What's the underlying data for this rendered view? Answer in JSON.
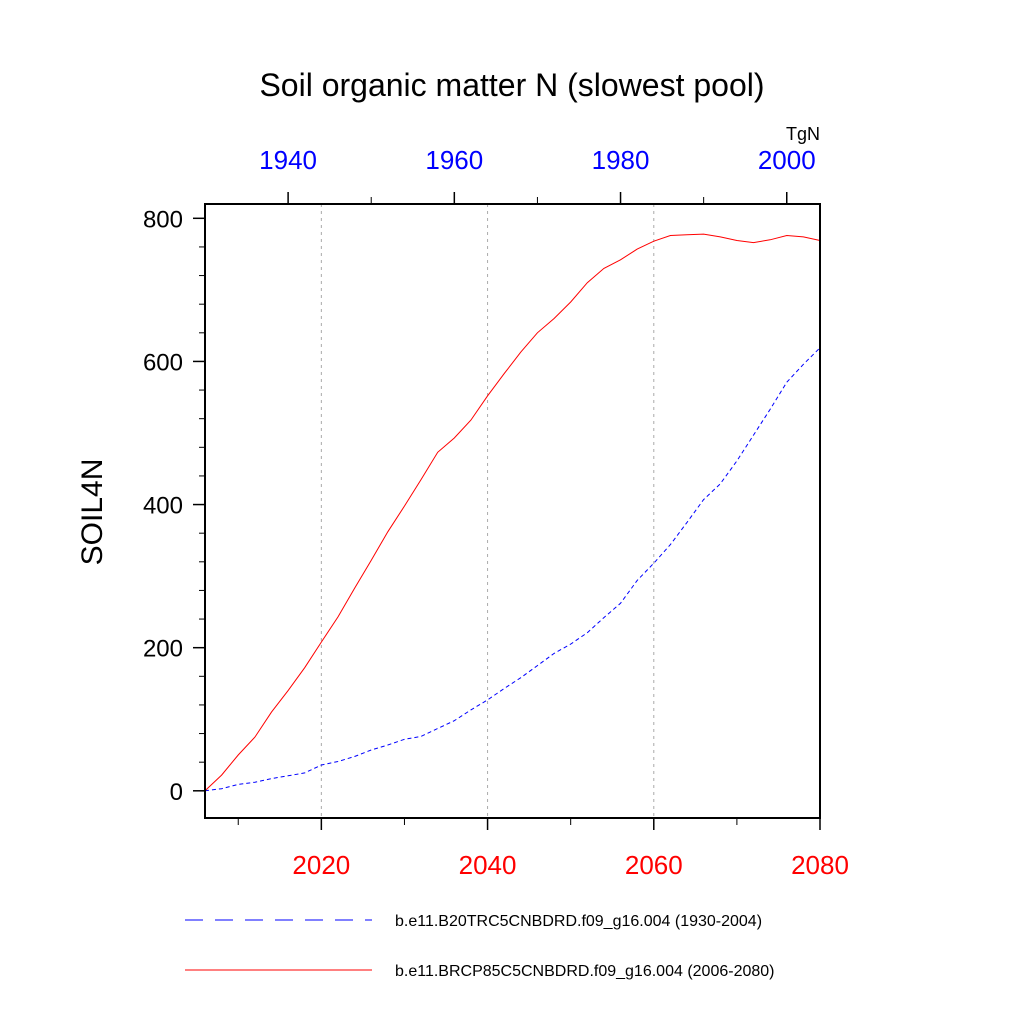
{
  "chart_data": {
    "type": "line",
    "title": "Soil organic matter N (slowest pool)",
    "ylabel": "SOIL4N",
    "units": "TgN",
    "ylim": [
      -38,
      820
    ],
    "yticks": [
      0,
      200,
      400,
      600,
      800
    ],
    "x_bottom": {
      "range": [
        2006,
        2080
      ],
      "ticks": [
        2020,
        2040,
        2060,
        2080
      ],
      "color": "#ff0000"
    },
    "x_top": {
      "range": [
        1930,
        2004
      ],
      "ticks": [
        1940,
        1960,
        1980,
        2000
      ],
      "color": "#0000ff"
    },
    "gridlines_x": [
      2020,
      2040,
      2060
    ],
    "series": [
      {
        "name": "b.e11.B20TRC5CNBDRD.f09_g16.004 (1930-2004)",
        "axis": "top",
        "color": "#0000ff",
        "dash": "dashed",
        "x": [
          1930,
          1932,
          1934,
          1936,
          1938,
          1940,
          1942,
          1944,
          1946,
          1948,
          1950,
          1952,
          1954,
          1956,
          1958,
          1960,
          1962,
          1964,
          1966,
          1968,
          1970,
          1972,
          1974,
          1976,
          1978,
          1980,
          1982,
          1984,
          1986,
          1988,
          1990,
          1992,
          1994,
          1996,
          1998,
          2000,
          2002,
          2004
        ],
        "values": [
          0,
          3,
          9,
          12,
          17,
          21,
          25,
          36,
          41,
          48,
          57,
          64,
          72,
          76,
          87,
          98,
          113,
          127,
          143,
          158,
          175,
          192,
          205,
          221,
          242,
          262,
          294,
          318,
          344,
          375,
          407,
          429,
          461,
          497,
          533,
          571,
          596,
          619
        ]
      },
      {
        "name": "b.e11.BRCP85C5CNBDRD.f09_g16.004 (2006-2080)",
        "axis": "bottom",
        "color": "#ff0000",
        "dash": "solid",
        "x": [
          2006,
          2008,
          2010,
          2012,
          2014,
          2016,
          2018,
          2020,
          2022,
          2024,
          2026,
          2028,
          2030,
          2032,
          2034,
          2036,
          2038,
          2040,
          2042,
          2044,
          2046,
          2048,
          2050,
          2052,
          2054,
          2056,
          2058,
          2060,
          2062,
          2064,
          2066,
          2068,
          2070,
          2072,
          2074,
          2076,
          2078,
          2080
        ],
        "values": [
          0,
          22,
          50,
          75,
          110,
          140,
          172,
          208,
          243,
          283,
          322,
          362,
          398,
          435,
          473,
          493,
          518,
          552,
          583,
          613,
          640,
          660,
          683,
          710,
          730,
          742,
          757,
          768,
          776,
          777,
          778,
          774,
          769,
          766,
          770,
          776,
          774,
          769
        ]
      }
    ],
    "legend_position": "bottom"
  }
}
